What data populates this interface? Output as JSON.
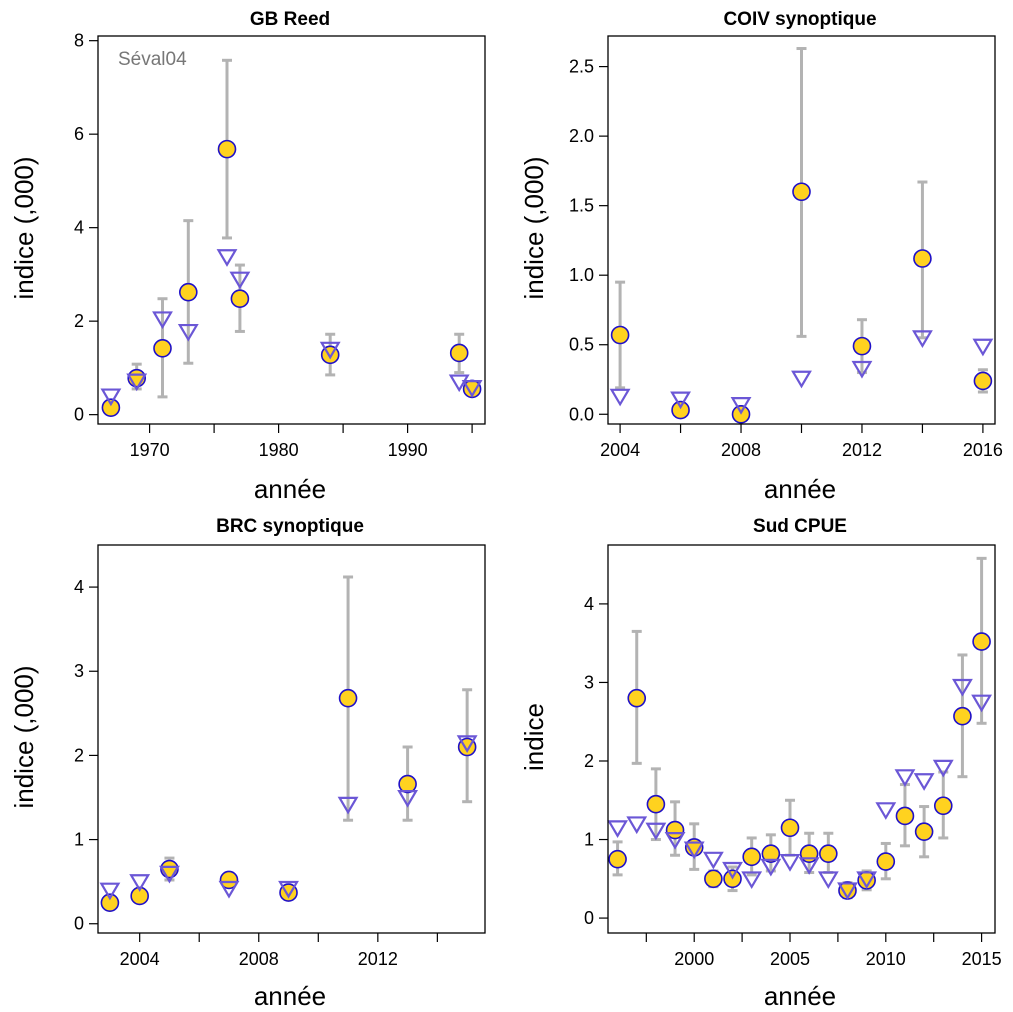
{
  "figure": {
    "colors": {
      "point_fill": "#FFD21F",
      "point_stroke": "#1F10C8",
      "triangle_stroke": "#6B57D6",
      "errorbar": "#B3B3B3"
    }
  },
  "chart_data": [
    {
      "type": "scatter",
      "title": "GB Reed",
      "xlabel": "année",
      "ylabel": "indice (,000)",
      "annotation": "Séval04",
      "xlim": [
        1966,
        1996
      ],
      "ylim": [
        -0.2,
        8.1
      ],
      "xticks": [
        1970,
        1980,
        1990
      ],
      "yticks": [
        0,
        2,
        4,
        6,
        8
      ],
      "observed": [
        {
          "x": 1967,
          "y": 0.15,
          "lo": 0.08,
          "hi": 0.25
        },
        {
          "x": 1969,
          "y": 0.78,
          "lo": 0.55,
          "hi": 1.08
        },
        {
          "x": 1971,
          "y": 1.42,
          "lo": 0.38,
          "hi": 2.48
        },
        {
          "x": 1973,
          "y": 2.62,
          "lo": 1.1,
          "hi": 4.15
        },
        {
          "x": 1976,
          "y": 5.68,
          "lo": 3.78,
          "hi": 7.58
        },
        {
          "x": 1977,
          "y": 2.48,
          "lo": 1.78,
          "hi": 3.2
        },
        {
          "x": 1984,
          "y": 1.28,
          "lo": 0.85,
          "hi": 1.72
        },
        {
          "x": 1994,
          "y": 1.32,
          "lo": 0.9,
          "hi": 1.72
        },
        {
          "x": 1995,
          "y": 0.55,
          "lo": 0.45,
          "hi": 0.65
        }
      ],
      "fitted": [
        {
          "x": 1967,
          "y": 0.4
        },
        {
          "x": 1969,
          "y": 0.72
        },
        {
          "x": 1971,
          "y": 2.05
        },
        {
          "x": 1973,
          "y": 1.78
        },
        {
          "x": 1976,
          "y": 3.38
        },
        {
          "x": 1977,
          "y": 2.9
        },
        {
          "x": 1984,
          "y": 1.4
        },
        {
          "x": 1994,
          "y": 0.7
        },
        {
          "x": 1995,
          "y": 0.58
        }
      ]
    },
    {
      "type": "scatter",
      "title": "COIV synoptique",
      "xlabel": "année",
      "ylabel": "indice (,000)",
      "xlim": [
        2003.6,
        2016.4
      ],
      "ylim": [
        -0.07,
        2.72
      ],
      "xticks": [
        2004,
        2008,
        2012,
        2016
      ],
      "yticks": [
        0.0,
        0.5,
        1.0,
        1.5,
        2.0,
        2.5
      ],
      "ytick_labels": [
        "0.0",
        "0.5",
        "1.0",
        "1.5",
        "2.0",
        "2.5"
      ],
      "observed": [
        {
          "x": 2004,
          "y": 0.57,
          "lo": 0.19,
          "hi": 0.95
        },
        {
          "x": 2006,
          "y": 0.03,
          "lo": 0.02,
          "hi": 0.05
        },
        {
          "x": 2008,
          "y": 0.0,
          "lo": 0.0,
          "hi": 0.01
        },
        {
          "x": 2010,
          "y": 1.6,
          "lo": 0.56,
          "hi": 2.63
        },
        {
          "x": 2012,
          "y": 0.49,
          "lo": 0.3,
          "hi": 0.68
        },
        {
          "x": 2014,
          "y": 1.12,
          "lo": 0.55,
          "hi": 1.67
        },
        {
          "x": 2016,
          "y": 0.24,
          "lo": 0.16,
          "hi": 0.32
        }
      ],
      "fitted": [
        {
          "x": 2004,
          "y": 0.13
        },
        {
          "x": 2006,
          "y": 0.11
        },
        {
          "x": 2008,
          "y": 0.07
        },
        {
          "x": 2010,
          "y": 0.26
        },
        {
          "x": 2012,
          "y": 0.33
        },
        {
          "x": 2014,
          "y": 0.55
        },
        {
          "x": 2016,
          "y": 0.49
        }
      ]
    },
    {
      "type": "scatter",
      "title": "BRC synoptique",
      "xlabel": "année",
      "ylabel": "indice (,000)",
      "xlim": [
        2002.6,
        2015.6
      ],
      "ylim": [
        -0.11,
        4.5
      ],
      "xticks": [
        2004,
        2008,
        2012
      ],
      "yticks": [
        0,
        1,
        2,
        3,
        4
      ],
      "observed": [
        {
          "x": 2003,
          "y": 0.25,
          "lo": 0.2,
          "hi": 0.3
        },
        {
          "x": 2004,
          "y": 0.33,
          "lo": 0.28,
          "hi": 0.38
        },
        {
          "x": 2005,
          "y": 0.65,
          "lo": 0.52,
          "hi": 0.78
        },
        {
          "x": 2007,
          "y": 0.52,
          "lo": 0.45,
          "hi": 0.6
        },
        {
          "x": 2009,
          "y": 0.37,
          "lo": 0.32,
          "hi": 0.43
        },
        {
          "x": 2011,
          "y": 2.68,
          "lo": 1.23,
          "hi": 4.12
        },
        {
          "x": 2013,
          "y": 1.66,
          "lo": 1.23,
          "hi": 2.1
        },
        {
          "x": 2015,
          "y": 2.1,
          "lo": 1.45,
          "hi": 2.78
        }
      ],
      "fitted": [
        {
          "x": 2003,
          "y": 0.4
        },
        {
          "x": 2004,
          "y": 0.5
        },
        {
          "x": 2005,
          "y": 0.6
        },
        {
          "x": 2007,
          "y": 0.42
        },
        {
          "x": 2009,
          "y": 0.42
        },
        {
          "x": 2011,
          "y": 1.42
        },
        {
          "x": 2013,
          "y": 1.5
        },
        {
          "x": 2015,
          "y": 2.15
        }
      ]
    },
    {
      "type": "scatter",
      "title": "Sud CPUE",
      "xlabel": "année",
      "ylabel": "indice",
      "xlim": [
        1995.5,
        2015.7
      ],
      "ylim": [
        -0.19,
        4.75
      ],
      "xticks": [
        2000,
        2005,
        2010,
        2015
      ],
      "yticks": [
        0,
        1,
        2,
        3,
        4
      ],
      "observed": [
        {
          "x": 1996,
          "y": 0.75,
          "lo": 0.55,
          "hi": 0.97
        },
        {
          "x": 1997,
          "y": 2.8,
          "lo": 1.97,
          "hi": 3.65
        },
        {
          "x": 1998,
          "y": 1.45,
          "lo": 1.0,
          "hi": 1.9
        },
        {
          "x": 1999,
          "y": 1.12,
          "lo": 0.8,
          "hi": 1.48
        },
        {
          "x": 2000,
          "y": 0.9,
          "lo": 0.62,
          "hi": 1.2
        },
        {
          "x": 2001,
          "y": 0.5,
          "lo": 0.4,
          "hi": 0.6
        },
        {
          "x": 2002,
          "y": 0.5,
          "lo": 0.35,
          "hi": 0.65
        },
        {
          "x": 2003,
          "y": 0.78,
          "lo": 0.55,
          "hi": 1.02
        },
        {
          "x": 2004,
          "y": 0.82,
          "lo": 0.6,
          "hi": 1.06
        },
        {
          "x": 2005,
          "y": 1.15,
          "lo": 0.8,
          "hi": 1.5
        },
        {
          "x": 2006,
          "y": 0.82,
          "lo": 0.58,
          "hi": 1.08
        },
        {
          "x": 2007,
          "y": 0.82,
          "lo": 0.58,
          "hi": 1.08
        },
        {
          "x": 2008,
          "y": 0.35,
          "lo": 0.26,
          "hi": 0.45
        },
        {
          "x": 2009,
          "y": 0.48,
          "lo": 0.36,
          "hi": 0.6
        },
        {
          "x": 2010,
          "y": 0.72,
          "lo": 0.5,
          "hi": 0.95
        },
        {
          "x": 2011,
          "y": 1.3,
          "lo": 0.92,
          "hi": 1.7
        },
        {
          "x": 2012,
          "y": 1.1,
          "lo": 0.78,
          "hi": 1.42
        },
        {
          "x": 2013,
          "y": 1.43,
          "lo": 1.02,
          "hi": 1.86
        },
        {
          "x": 2014,
          "y": 2.57,
          "lo": 1.8,
          "hi": 3.35
        },
        {
          "x": 2015,
          "y": 3.52,
          "lo": 2.48,
          "hi": 4.58
        }
      ],
      "fitted": [
        {
          "x": 1996,
          "y": 1.15
        },
        {
          "x": 1997,
          "y": 1.2
        },
        {
          "x": 1998,
          "y": 1.12
        },
        {
          "x": 1999,
          "y": 1.0
        },
        {
          "x": 2000,
          "y": 0.88
        },
        {
          "x": 2001,
          "y": 0.75
        },
        {
          "x": 2002,
          "y": 0.62
        },
        {
          "x": 2003,
          "y": 0.5
        },
        {
          "x": 2004,
          "y": 0.66
        },
        {
          "x": 2005,
          "y": 0.72
        },
        {
          "x": 2006,
          "y": 0.68
        },
        {
          "x": 2007,
          "y": 0.5
        },
        {
          "x": 2008,
          "y": 0.36
        },
        {
          "x": 2009,
          "y": 0.5
        },
        {
          "x": 2010,
          "y": 1.38
        },
        {
          "x": 2011,
          "y": 1.8
        },
        {
          "x": 2012,
          "y": 1.75
        },
        {
          "x": 2013,
          "y": 1.92
        },
        {
          "x": 2014,
          "y": 2.95
        },
        {
          "x": 2015,
          "y": 2.75
        }
      ]
    }
  ]
}
